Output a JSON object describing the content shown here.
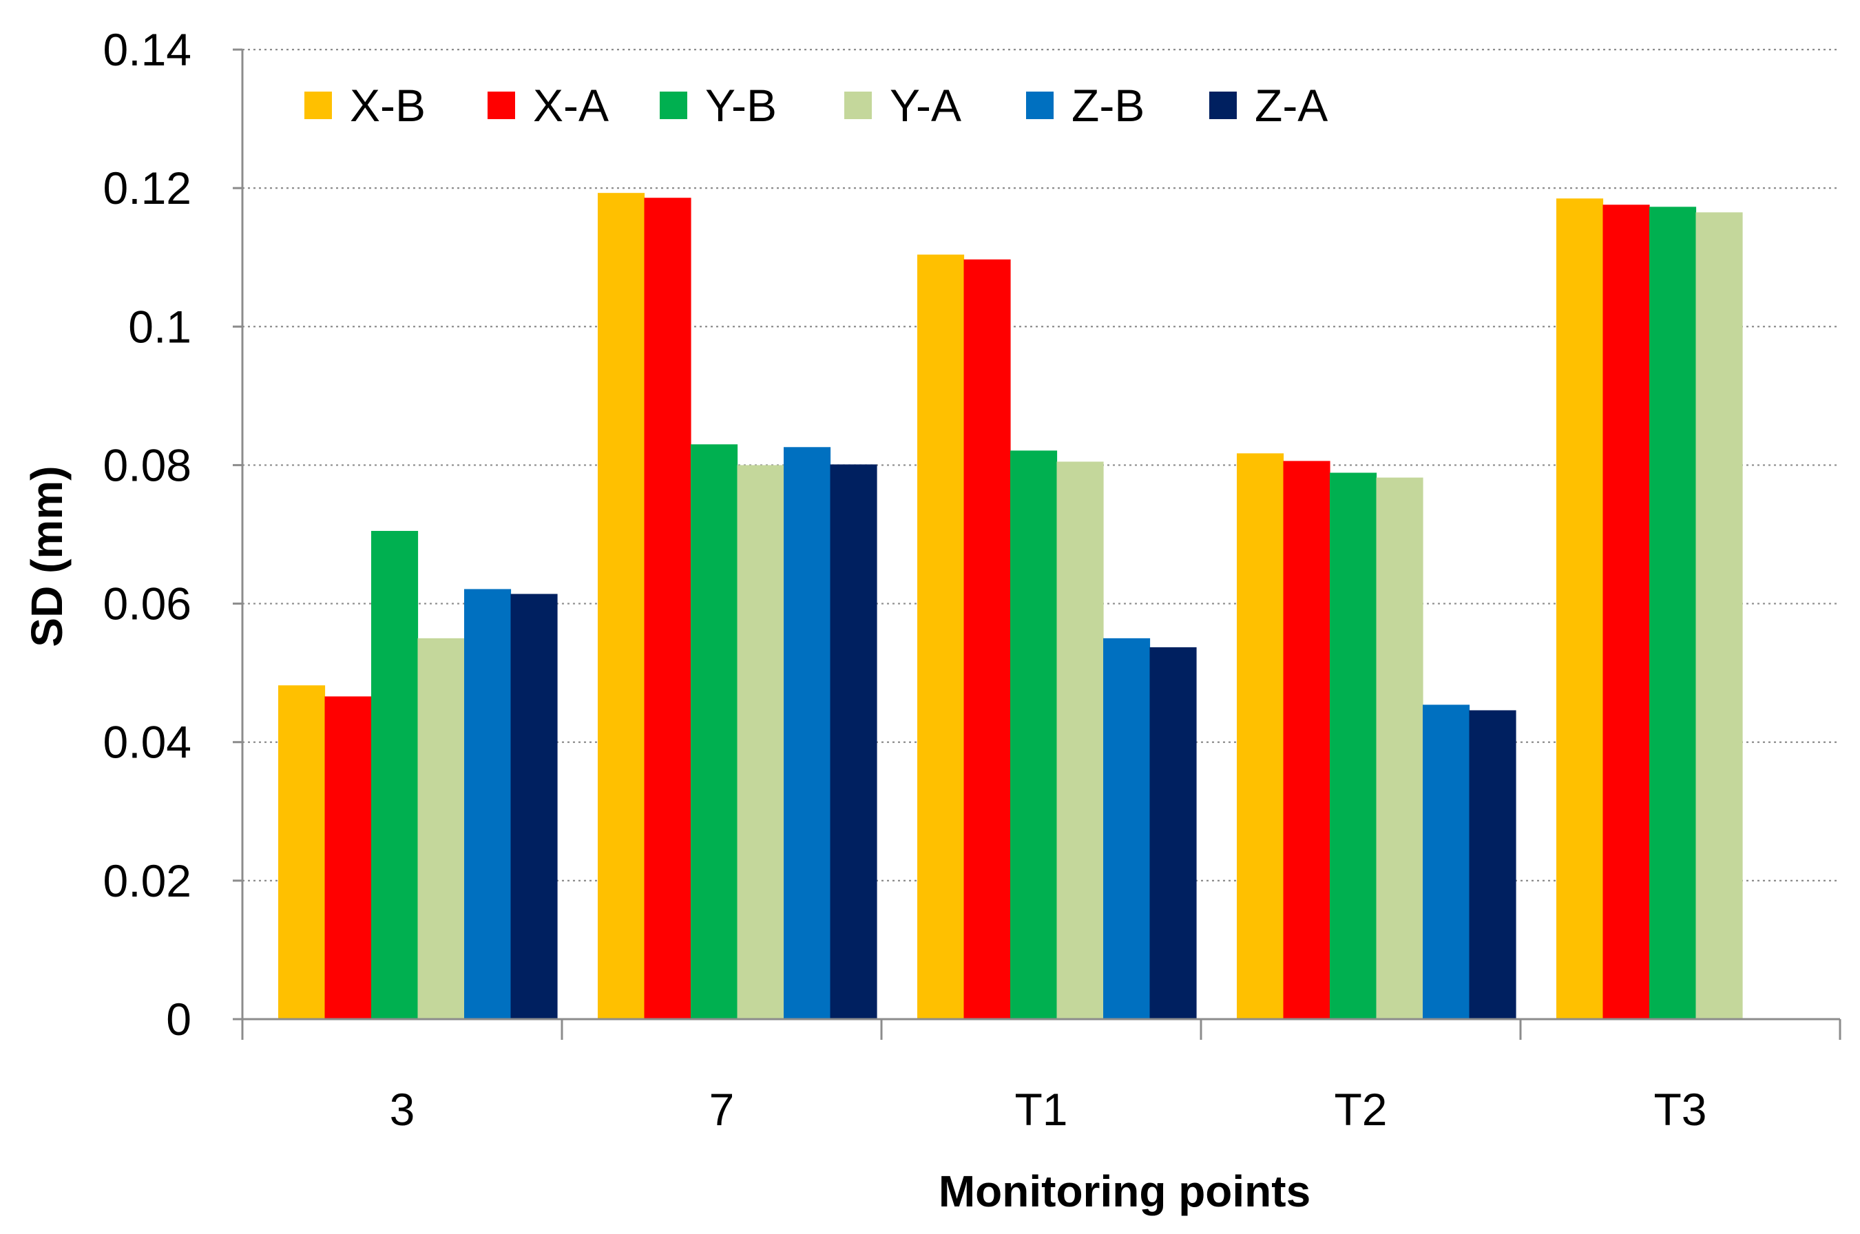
{
  "chart_data": {
    "type": "bar",
    "title": "",
    "xlabel": "Monitoring points",
    "ylabel": "SD (mm)",
    "ylim": [
      0,
      0.14
    ],
    "yticks": [
      "0",
      "0.02",
      "0.04",
      "0.06",
      "0.08",
      "0.1",
      "0.12",
      "0.14"
    ],
    "ytick_values": [
      0,
      0.02,
      0.04,
      0.06,
      0.08,
      0.1,
      0.12,
      0.14
    ],
    "grid": true,
    "legend_position": "top-left",
    "categories": [
      "3",
      "7",
      "T1",
      "T2",
      "T3"
    ],
    "series": [
      {
        "name": "X-B",
        "color": "#FFC000",
        "values": [
          0.0482,
          0.1193,
          0.1104,
          0.0817,
          0.1185
        ]
      },
      {
        "name": "X-A",
        "color": "#FF0000",
        "values": [
          0.0466,
          0.1186,
          0.1097,
          0.0806,
          0.1176
        ]
      },
      {
        "name": "Y-B",
        "color": "#00B050",
        "values": [
          0.0705,
          0.083,
          0.0821,
          0.0789,
          0.1173
        ]
      },
      {
        "name": "Y-A",
        "color": "#C4D79B",
        "values": [
          0.055,
          0.08,
          0.0805,
          0.0782,
          0.1165
        ]
      },
      {
        "name": "Z-B",
        "color": "#0070C0",
        "values": [
          0.0621,
          0.0826,
          0.055,
          0.0454,
          null
        ]
      },
      {
        "name": "Z-A",
        "color": "#002060",
        "values": [
          0.0614,
          0.0801,
          0.0537,
          0.0446,
          null
        ]
      }
    ]
  }
}
